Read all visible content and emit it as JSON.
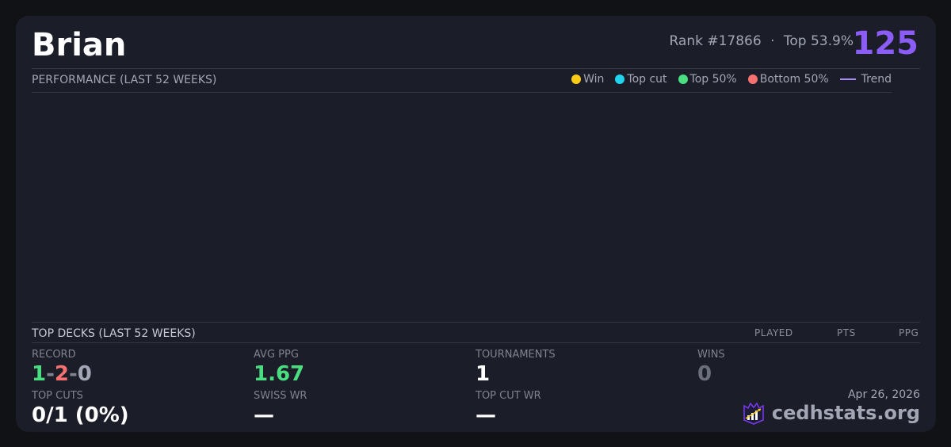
{
  "player": {
    "name": "Brian",
    "rank": "Rank #17866",
    "sep": "·",
    "top": "Top 53.9%",
    "score": "125"
  },
  "performance": {
    "title": "PERFORMANCE (LAST 52 WEEKS)",
    "legend": [
      {
        "label": "Win",
        "color": "#facc15"
      },
      {
        "label": "Top cut",
        "color": "#22d3ee"
      },
      {
        "label": "Top 50%",
        "color": "#4ade80"
      },
      {
        "label": "Bottom 50%",
        "color": "#f87171"
      },
      {
        "label": "Trend",
        "color": "#a78bfa"
      }
    ]
  },
  "decks": {
    "title": "TOP DECKS (LAST 52 WEEKS)",
    "columns": [
      "PLAYED",
      "PTS",
      "PPG"
    ]
  },
  "stats": {
    "record": {
      "label": "RECORD",
      "wins": "1",
      "losses": "2",
      "draws": "0",
      "dash": "-"
    },
    "avg_ppg": {
      "label": "AVG PPG",
      "value": "1.67"
    },
    "tournaments": {
      "label": "TOURNAMENTS",
      "value": "1"
    },
    "wins": {
      "label": "WINS",
      "value": "0"
    },
    "top_cuts": {
      "label": "TOP CUTS",
      "value": "0/1 (0%)"
    },
    "swiss_wr": {
      "label": "SWISS WR",
      "value": "—"
    },
    "top_cut_wr": {
      "label": "TOP CUT WR",
      "value": "—"
    }
  },
  "footer": {
    "date": "Apr 26, 2026",
    "brand": "cedhstats.org"
  }
}
